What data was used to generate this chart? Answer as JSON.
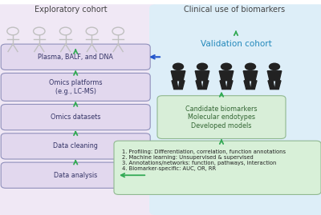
{
  "title_left": "Exploratory cohort",
  "title_right": "Clinical use of biomarkers",
  "validation_label": "Validation cohort",
  "right_box_top": "Candidate biomarkers\nMolecular endotypes\nDeveloped models",
  "right_box_bottom": "1. Profiling: Differentiation, correlation, function annotations\n2. Machine learning: Unsupervised & supervised\n3. Annotations/networks: function, pathways, interaction\n4. Biomarker-specific: AUC, OR, RR",
  "left_box_labels": [
    "Plasma, BALF, and DNA",
    "Omics platforms\n(e.g., LC-MS)",
    "Omics datasets",
    "Data cleaning",
    "Data analysis"
  ],
  "bg_left_color": "#f0e8f5",
  "bg_right_color": "#ddeef8",
  "box_left_fill": "#e2d8ee",
  "box_left_edge": "#9090bb",
  "box_right_top_fill": "#d8eed8",
  "box_right_top_edge": "#90b890",
  "box_right_bot_fill": "#d8f0d8",
  "box_right_bot_edge": "#90b890",
  "arrow_green": "#33aa55",
  "arrow_blue": "#2255cc",
  "title_left_color": "#444444",
  "title_right_color": "#444444",
  "validation_color": "#2288bb",
  "person_left_color": "#c0c0c0",
  "person_right_color": "#222222",
  "box_text_left_color": "#333366",
  "box_text_right_top_color": "#336633",
  "box_text_right_bot_color": "#222222",
  "figure_bg": "#ffffff"
}
